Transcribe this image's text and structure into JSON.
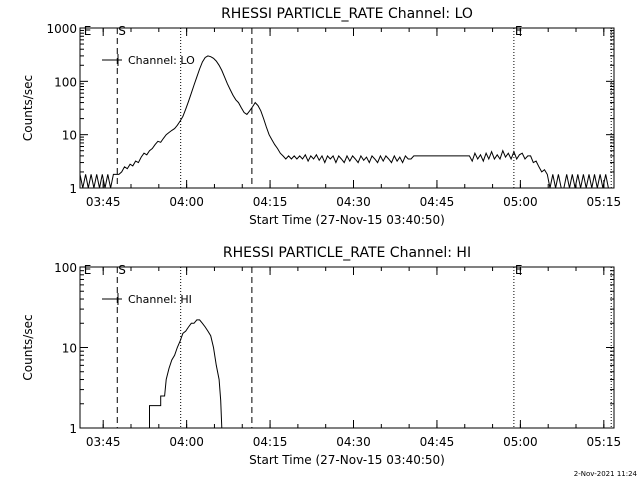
{
  "footer_timestamp": "2-Nov-2021 11:24",
  "chart_data": [
    {
      "type": "line",
      "title": "RHESSI PARTICLE_RATE Channel: LO",
      "xlabel": "Start Time (27-Nov-15 03:40:50)",
      "ylabel": "Counts/sec",
      "yscale": "log",
      "ylim": [
        1,
        1000
      ],
      "xlim_minutes": [
        0,
        96
      ],
      "x_unit": "minutes since 03:40:50",
      "x_ticks": [
        {
          "t": 4.17,
          "label": "03:45"
        },
        {
          "t": 19.17,
          "label": "04:00"
        },
        {
          "t": 34.17,
          "label": "04:15"
        },
        {
          "t": 49.17,
          "label": "04:30"
        },
        {
          "t": 64.17,
          "label": "04:45"
        },
        {
          "t": 79.17,
          "label": "05:00"
        },
        {
          "t": 94.17,
          "label": "05:15"
        }
      ],
      "y_ticks": [
        {
          "v": 1,
          "label": "1"
        },
        {
          "v": 10,
          "label": "10"
        },
        {
          "v": 100,
          "label": "100"
        },
        {
          "v": 1000,
          "label": "1000"
        }
      ],
      "legend": {
        "label": "Channel: LO",
        "position": "top-left"
      },
      "markers": [
        {
          "t": 6.7,
          "style": "dashed",
          "label": "S"
        },
        {
          "t": 18.1,
          "style": "dotted",
          "label": ""
        },
        {
          "t": 30.9,
          "style": "dashed",
          "label": ""
        },
        {
          "t": 0.5,
          "style": "none",
          "label": "E"
        },
        {
          "t": 78.0,
          "style": "dotted",
          "label": "E"
        },
        {
          "t": 95.5,
          "style": "dotted",
          "label": ""
        }
      ],
      "series": [
        {
          "name": "Channel: LO",
          "points": [
            [
              0,
              1.8
            ],
            [
              0.5,
              1
            ],
            [
              1,
              1.8
            ],
            [
              1.5,
              1
            ],
            [
              2,
              1.8
            ],
            [
              2.5,
              1
            ],
            [
              3,
              1.8
            ],
            [
              3.5,
              1
            ],
            [
              4,
              1.8
            ],
            [
              4.5,
              1
            ],
            [
              5,
              1.8
            ],
            [
              5.5,
              1
            ],
            [
              6,
              1.8
            ],
            [
              6.5,
              1.8
            ],
            [
              7,
              1.8
            ],
            [
              7.5,
              2
            ],
            [
              8,
              2.5
            ],
            [
              8.5,
              2.3
            ],
            [
              9,
              2.8
            ],
            [
              9.5,
              2.6
            ],
            [
              10,
              3.2
            ],
            [
              10.5,
              3
            ],
            [
              11,
              3.8
            ],
            [
              11.5,
              4.5
            ],
            [
              12,
              4.2
            ],
            [
              12.5,
              5
            ],
            [
              13,
              5.5
            ],
            [
              13.5,
              6.5
            ],
            [
              14,
              7.5
            ],
            [
              14.5,
              7.2
            ],
            [
              15,
              8.5
            ],
            [
              15.5,
              10
            ],
            [
              16,
              11
            ],
            [
              16.5,
              12
            ],
            [
              17,
              13
            ],
            [
              17.5,
              15
            ],
            [
              18,
              18
            ],
            [
              18.5,
              22
            ],
            [
              19,
              30
            ],
            [
              19.5,
              42
            ],
            [
              20,
              60
            ],
            [
              20.5,
              85
            ],
            [
              21,
              120
            ],
            [
              21.5,
              170
            ],
            [
              22,
              230
            ],
            [
              22.5,
              280
            ],
            [
              23,
              300
            ],
            [
              23.5,
              290
            ],
            [
              24,
              270
            ],
            [
              24.5,
              240
            ],
            [
              25,
              200
            ],
            [
              25.5,
              160
            ],
            [
              26,
              120
            ],
            [
              26.5,
              90
            ],
            [
              27,
              70
            ],
            [
              27.5,
              55
            ],
            [
              28,
              45
            ],
            [
              28.5,
              40
            ],
            [
              29,
              32
            ],
            [
              29.5,
              26
            ],
            [
              30,
              24
            ],
            [
              30.5,
              28
            ],
            [
              31,
              33
            ],
            [
              31.5,
              40
            ],
            [
              32,
              35
            ],
            [
              32.5,
              28
            ],
            [
              33,
              20
            ],
            [
              33.5,
              14
            ],
            [
              34,
              10
            ],
            [
              34.5,
              8
            ],
            [
              35,
              6.5
            ],
            [
              35.5,
              5.5
            ],
            [
              36,
              4.5
            ],
            [
              36.5,
              4
            ],
            [
              37,
              3.5
            ],
            [
              37.5,
              4
            ],
            [
              38,
              3.5
            ],
            [
              38.5,
              4
            ],
            [
              39,
              3.5
            ],
            [
              39.5,
              4
            ],
            [
              40,
              3.5
            ],
            [
              40.5,
              4.2
            ],
            [
              41,
              3.2
            ],
            [
              41.5,
              4
            ],
            [
              42,
              3.5
            ],
            [
              42.5,
              4.2
            ],
            [
              43,
              3.3
            ],
            [
              43.5,
              4
            ],
            [
              44,
              3
            ],
            [
              44.5,
              4
            ],
            [
              45,
              3.5
            ],
            [
              45.5,
              4
            ],
            [
              46,
              3
            ],
            [
              46.5,
              4
            ],
            [
              47,
              3.5
            ],
            [
              47.5,
              3
            ],
            [
              48,
              4
            ],
            [
              48.5,
              3.2
            ],
            [
              49,
              4
            ],
            [
              49.5,
              3.5
            ],
            [
              50,
              3
            ],
            [
              50.5,
              4
            ],
            [
              51,
              3.3
            ],
            [
              51.5,
              3.8
            ],
            [
              52,
              3
            ],
            [
              52.5,
              4
            ],
            [
              53,
              3.5
            ],
            [
              53.5,
              3
            ],
            [
              54,
              4
            ],
            [
              54.5,
              3.2
            ],
            [
              55,
              4
            ],
            [
              55.5,
              3.5
            ],
            [
              56,
              3
            ],
            [
              56.5,
              4
            ],
            [
              57,
              3.2
            ],
            [
              57.5,
              3.8
            ],
            [
              58,
              3
            ],
            [
              58.5,
              4
            ],
            [
              59,
              3.5
            ],
            [
              59.5,
              3.5
            ],
            [
              60,
              4
            ],
            [
              60.5,
              4
            ],
            [
              61,
              4
            ],
            [
              61.5,
              4
            ],
            [
              62,
              4
            ],
            [
              62.5,
              4
            ],
            [
              63,
              4
            ],
            [
              63.5,
              4
            ],
            [
              64,
              4
            ],
            [
              64.5,
              4
            ],
            [
              65,
              4
            ],
            [
              65.5,
              4
            ],
            [
              66,
              4
            ],
            [
              66.5,
              4
            ],
            [
              67,
              4
            ],
            [
              67.5,
              4
            ],
            [
              68,
              4
            ],
            [
              68.5,
              4
            ],
            [
              69,
              4
            ],
            [
              69.5,
              4
            ],
            [
              70,
              4
            ],
            [
              70.5,
              3.2
            ],
            [
              71,
              4.5
            ],
            [
              71.5,
              3.5
            ],
            [
              72,
              4.2
            ],
            [
              72.5,
              3.2
            ],
            [
              73,
              4.5
            ],
            [
              73.5,
              3.5
            ],
            [
              74,
              4.8
            ],
            [
              74.5,
              3.5
            ],
            [
              75,
              4.2
            ],
            [
              75.5,
              3.5
            ],
            [
              76,
              5
            ],
            [
              76.5,
              3.8
            ],
            [
              77,
              4.5
            ],
            [
              77.5,
              3.5
            ],
            [
              78,
              4.8
            ],
            [
              78.5,
              3.5
            ],
            [
              79,
              4.2
            ],
            [
              79.5,
              4.5
            ],
            [
              80,
              3.5
            ],
            [
              80.5,
              4
            ],
            [
              81,
              4
            ],
            [
              81.5,
              3
            ],
            [
              82,
              3.2
            ],
            [
              82.5,
              2.5
            ],
            [
              83,
              2
            ],
            [
              83.5,
              2.2
            ],
            [
              84,
              1.8
            ],
            [
              84.5,
              1
            ],
            [
              85,
              1.8
            ],
            [
              85.5,
              1
            ],
            [
              86,
              1.8
            ],
            [
              86.5,
              1
            ],
            [
              87,
              1
            ],
            [
              87.5,
              1.8
            ],
            [
              88,
              1
            ],
            [
              88.5,
              1.8
            ],
            [
              89,
              1
            ],
            [
              89.5,
              1.8
            ],
            [
              90,
              1
            ],
            [
              90.5,
              1.8
            ],
            [
              91,
              1
            ],
            [
              91.5,
              1.8
            ],
            [
              92,
              1
            ],
            [
              92.5,
              1.8
            ],
            [
              93,
              1
            ],
            [
              93.5,
              1.8
            ],
            [
              94,
              1
            ],
            [
              94.5,
              1.8
            ],
            [
              95,
              1
            ]
          ]
        }
      ]
    },
    {
      "type": "line",
      "title": "RHESSI PARTICLE_RATE Channel: HI",
      "xlabel": "Start Time (27-Nov-15 03:40:50)",
      "ylabel": "Counts/sec",
      "yscale": "log",
      "ylim": [
        1,
        100
      ],
      "xlim_minutes": [
        0,
        96
      ],
      "x_unit": "minutes since 03:40:50",
      "x_ticks": [
        {
          "t": 4.17,
          "label": "03:45"
        },
        {
          "t": 19.17,
          "label": "04:00"
        },
        {
          "t": 34.17,
          "label": "04:15"
        },
        {
          "t": 49.17,
          "label": "04:30"
        },
        {
          "t": 64.17,
          "label": "04:45"
        },
        {
          "t": 79.17,
          "label": "05:00"
        },
        {
          "t": 94.17,
          "label": "05:15"
        }
      ],
      "y_ticks": [
        {
          "v": 1,
          "label": "1"
        },
        {
          "v": 10,
          "label": "10"
        },
        {
          "v": 100,
          "label": "100"
        }
      ],
      "legend": {
        "label": "Channel: HI",
        "position": "top-left"
      },
      "markers": [
        {
          "t": 6.7,
          "style": "dashed",
          "label": "S"
        },
        {
          "t": 18.1,
          "style": "dotted",
          "label": ""
        },
        {
          "t": 30.9,
          "style": "dashed",
          "label": ""
        },
        {
          "t": 0.5,
          "style": "none",
          "label": "E"
        },
        {
          "t": 78.0,
          "style": "dotted",
          "label": "E"
        },
        {
          "t": 95.5,
          "style": "dotted",
          "label": ""
        }
      ],
      "series": [
        {
          "name": "Channel: HI",
          "points": [
            [
              12.5,
              1
            ],
            [
              12.5,
              1.9
            ],
            [
              14.5,
              1.9
            ],
            [
              14.5,
              2.5
            ],
            [
              15.2,
              2.5
            ],
            [
              15.5,
              4
            ],
            [
              16,
              5.5
            ],
            [
              16.5,
              7
            ],
            [
              17,
              8
            ],
            [
              17.5,
              10
            ],
            [
              18,
              12
            ],
            [
              18.5,
              15
            ],
            [
              19,
              16
            ],
            [
              19.5,
              18
            ],
            [
              20,
              20
            ],
            [
              20.5,
              20
            ],
            [
              21,
              22
            ],
            [
              21.5,
              22
            ],
            [
              22,
              20
            ],
            [
              22.5,
              18
            ],
            [
              23,
              16
            ],
            [
              23.5,
              14
            ],
            [
              24,
              10
            ],
            [
              24.5,
              6
            ],
            [
              25,
              4
            ],
            [
              25.3,
              2.2
            ],
            [
              25.5,
              1
            ]
          ]
        }
      ]
    }
  ]
}
